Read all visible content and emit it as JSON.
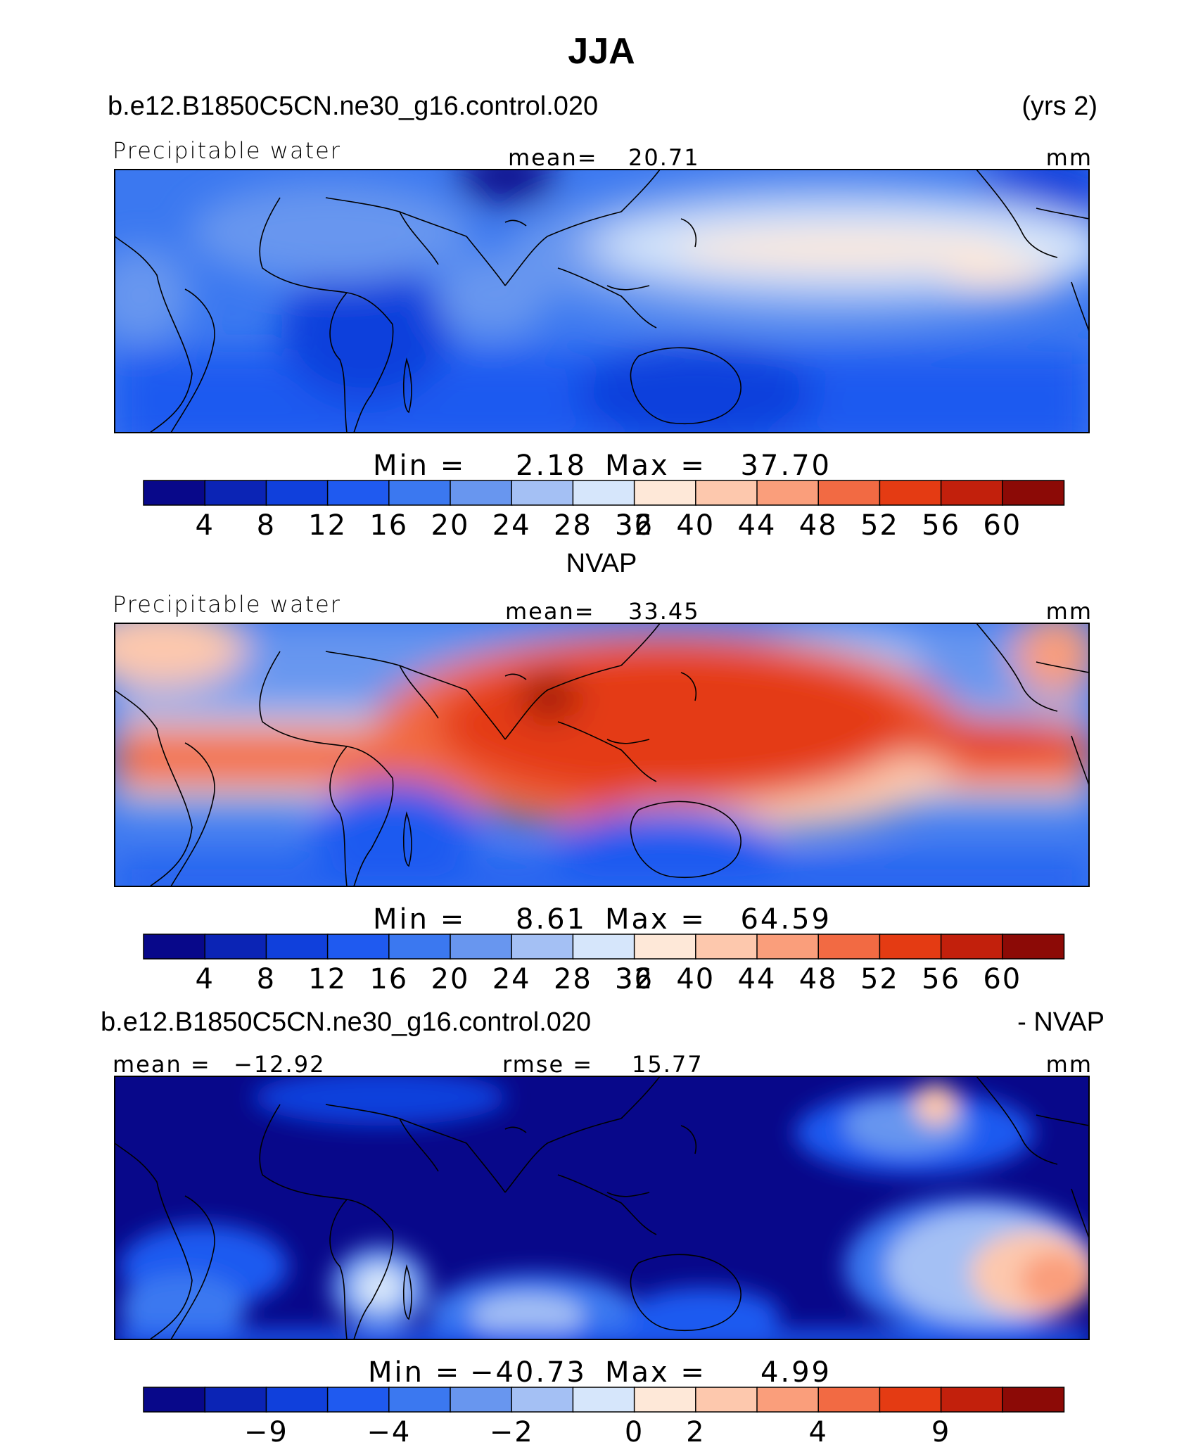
{
  "figure_title": "JJA",
  "colors": {
    "palette": [
      "#08088a",
      "#0b24b5",
      "#1040dc",
      "#1f5af0",
      "#3b78f0",
      "#6896ef",
      "#a4c0f4",
      "#d6e6fb",
      "#fee8d8",
      "#fdc8ad",
      "#fa9e7b",
      "#f26a43",
      "#e43b13",
      "#c2200c",
      "#8c0a06"
    ],
    "coastline": "#000000"
  },
  "chart_data": [
    {
      "type": "heatmap",
      "case_name": "b.e12.B1850C5CN.ne30_g16.control.020",
      "years": "(yrs 2)",
      "variable": "Precipitable water",
      "stat_label": "mean=",
      "stat_value": "20.71",
      "units": "mm",
      "min_label": "Min =",
      "min_value": "2.18",
      "max_label": "Max =",
      "max_value": "37.70",
      "colorbar_ticks": [
        "4",
        "8",
        "12",
        "16",
        "20",
        "24",
        "28",
        "32",
        "36",
        "40",
        "44",
        "48",
        "52",
        "56",
        "60"
      ],
      "colorbar_levels": [
        4,
        8,
        12,
        16,
        20,
        24,
        28,
        32,
        36,
        40,
        44,
        48,
        52,
        56,
        60
      ]
    },
    {
      "type": "heatmap",
      "title": "NVAP",
      "variable": "Precipitable water",
      "stat_label": "mean=",
      "stat_value": "33.45",
      "units": "mm",
      "min_label": "Min =",
      "min_value": "8.61",
      "max_label": "Max =",
      "max_value": "64.59",
      "colorbar_ticks": [
        "4",
        "8",
        "12",
        "16",
        "20",
        "24",
        "28",
        "32",
        "36",
        "40",
        "44",
        "48",
        "52",
        "56",
        "60"
      ],
      "colorbar_levels": [
        4,
        8,
        12,
        16,
        20,
        24,
        28,
        32,
        36,
        40,
        44,
        48,
        52,
        56,
        60
      ]
    },
    {
      "type": "heatmap",
      "case_name": "b.e12.B1850C5CN.ne30_g16.control.020",
      "suffix": "- NVAP",
      "stat_label": "mean =",
      "stat_value": "−12.92",
      "rmse_label": "rmse =",
      "rmse_value": "15.77",
      "units": "mm",
      "min_label": "Min =",
      "min_value": "−40.73",
      "max_label": "Max =",
      "max_value": "4.99",
      "colorbar_ticks": [
        "−9",
        "−4",
        "−2",
        "0",
        "2",
        "4",
        "9"
      ],
      "colorbar_levels": [
        -9,
        -4,
        -2,
        0,
        2,
        4,
        9
      ]
    }
  ]
}
